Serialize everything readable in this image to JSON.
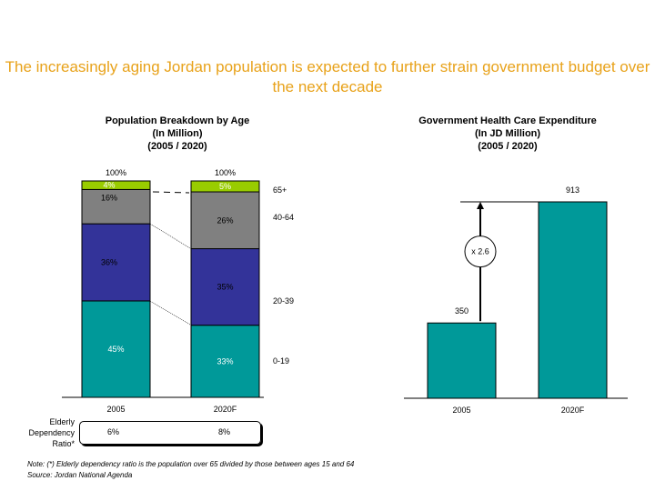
{
  "title": "The increasingly aging Jordan population is expected to further strain government budget over the next decade",
  "chart_data": [
    {
      "type": "bar",
      "stacked": true,
      "title": "Population Breakdown by Age",
      "subtitle1": "(In Million)",
      "subtitle2": "(2005 / 2020)",
      "categories": [
        "2005",
        "2020F"
      ],
      "totals": [
        "100%",
        "100%"
      ],
      "series": [
        {
          "name": "0-19",
          "values": [
            45,
            33
          ],
          "color": "#009999",
          "label_color": "#ffffff"
        },
        {
          "name": "20-39",
          "values": [
            36,
            35
          ],
          "color": "#333399",
          "label_color": "#000000"
        },
        {
          "name": "40-64",
          "values": [
            16,
            26
          ],
          "color": "#808080",
          "label_color": "#000000"
        },
        {
          "name": "65+",
          "values": [
            4,
            5
          ],
          "color": "#99cc00",
          "label_color": "#ffffff"
        }
      ],
      "unit": "%"
    },
    {
      "type": "bar",
      "title": "Government Health Care Expenditure",
      "subtitle1": "(In JD Million)",
      "subtitle2": "(2005 / 2020)",
      "categories": [
        "2005",
        "2020F"
      ],
      "values": [
        350,
        913
      ],
      "color": "#009999",
      "annotation": "x 2.6"
    }
  ],
  "ratio": {
    "label_lines": [
      "Elderly",
      "Dependency",
      "Ratio*"
    ],
    "values": [
      "6%",
      "8%"
    ]
  },
  "note": "Note: (*) Elderly dependency ratio is the population over 65 divided by those between ages 15 and 64",
  "source": "Source: Jordan National Agenda"
}
